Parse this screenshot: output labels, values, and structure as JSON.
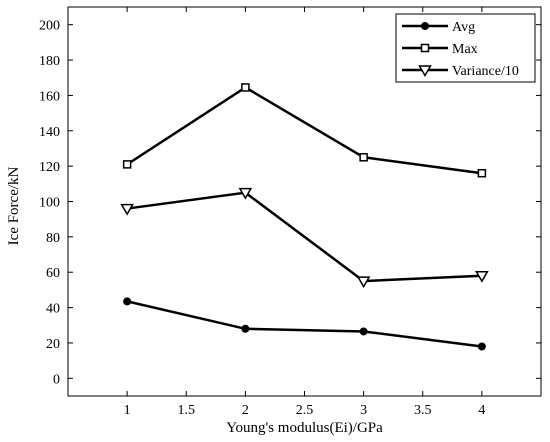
{
  "chart_data": {
    "type": "line",
    "title": "",
    "xlabel": "Young's modulus(Ei)/GPa",
    "ylabel": "Ice  Force/kN",
    "xlim": [
      0.5,
      4.5
    ],
    "ylim": [
      -10,
      210
    ],
    "xticks": [
      1,
      1.5,
      2,
      2.5,
      3,
      3.5,
      4
    ],
    "xtick_labels": [
      "1",
      "1.5",
      "2",
      "2.5",
      "3",
      "3.5",
      "4"
    ],
    "yticks": [
      0,
      20,
      40,
      60,
      80,
      100,
      120,
      140,
      160,
      180,
      200
    ],
    "ytick_labels": [
      "0",
      "20",
      "40",
      "60",
      "80",
      "100",
      "120",
      "140",
      "160",
      "180",
      "200"
    ],
    "grid": false,
    "legend_position": "top-right",
    "x": [
      1,
      2,
      3,
      4
    ],
    "series": [
      {
        "name": "Avg",
        "values": [
          43.5,
          28,
          26.5,
          18
        ],
        "marker": "filled-circle",
        "color": "#000000"
      },
      {
        "name": "Max",
        "values": [
          121,
          164.5,
          125,
          116
        ],
        "marker": "open-square",
        "color": "#000000"
      },
      {
        "name": "Variance/10",
        "values": [
          96,
          105,
          55,
          58
        ],
        "marker": "open-triangle-down",
        "color": "#000000"
      }
    ]
  }
}
